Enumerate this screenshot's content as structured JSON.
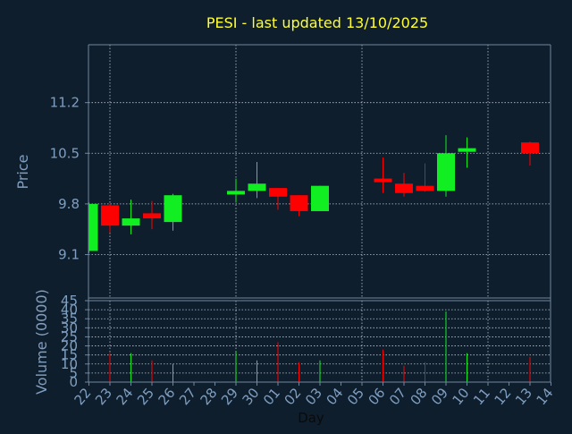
{
  "colors": {
    "background": "#0f1e2d",
    "axis": "#6f86a0",
    "grid": "#b8c4d0",
    "title": "#ffff33",
    "label": "#7f9fc0",
    "up": "#11ee22",
    "down": "#ff0000",
    "xlabel": "#0a0a0a"
  },
  "chart_data": {
    "type": "candlestick",
    "title": "PESI - last updated 13/10/2025",
    "xlabel": "Day",
    "price_panel": {
      "ylabel": "Price",
      "ylim": [
        8.5,
        12.0
      ],
      "yticks": [
        9.1,
        9.8,
        10.5,
        11.2
      ],
      "ytick_labels": [
        "9.1",
        "9.8",
        "10.5",
        "11.2"
      ],
      "grid": true
    },
    "volume_panel": {
      "ylabel": "Volume (0000)",
      "ylim": [
        0,
        45
      ],
      "yticks": [
        0,
        5,
        10,
        15,
        20,
        25,
        30,
        35,
        40,
        45
      ],
      "ytick_labels": [
        "0",
        "5",
        "10",
        "15",
        "20",
        "25",
        "30",
        "35",
        "40",
        "45"
      ],
      "grid": true
    },
    "x_labels": [
      "22",
      "23",
      "24",
      "25",
      "26",
      "27",
      "28",
      "29",
      "30",
      "01",
      "02",
      "03",
      "04",
      "05",
      "06",
      "07",
      "08",
      "09",
      "10",
      "11",
      "12",
      "13",
      "14"
    ],
    "candles": [
      {
        "x": "22",
        "open": 9.15,
        "high": 9.82,
        "low": 9.12,
        "close": 9.8,
        "volume": 0
      },
      {
        "x": "23",
        "open": 9.78,
        "high": 9.8,
        "low": 9.4,
        "close": 9.5,
        "volume": 16
      },
      {
        "x": "24",
        "open": 9.5,
        "high": 9.86,
        "low": 9.38,
        "close": 9.6,
        "volume": 16
      },
      {
        "x": "25",
        "open": 9.67,
        "high": 9.84,
        "low": 9.45,
        "close": 9.6,
        "volume": 12
      },
      {
        "x": "26",
        "open": 9.55,
        "high": 9.94,
        "low": 9.43,
        "close": 9.92,
        "volume": 10
      },
      {
        "x": "29",
        "open": 9.93,
        "high": 10.15,
        "low": 9.82,
        "close": 9.98,
        "volume": 17
      },
      {
        "x": "30",
        "open": 9.98,
        "high": 10.38,
        "low": 9.88,
        "close": 10.08,
        "volume": 12
      },
      {
        "x": "01",
        "open": 10.02,
        "high": 10.02,
        "low": 9.72,
        "close": 9.9,
        "volume": 22
      },
      {
        "x": "02",
        "open": 9.92,
        "high": 9.92,
        "low": 9.63,
        "close": 9.7,
        "volume": 11
      },
      {
        "x": "03",
        "open": 9.7,
        "high": 10.05,
        "low": 9.7,
        "close": 10.05,
        "volume": 12
      },
      {
        "x": "06",
        "open": 10.15,
        "high": 10.44,
        "low": 9.95,
        "close": 10.1,
        "volume": 18
      },
      {
        "x": "07",
        "open": 10.08,
        "high": 10.23,
        "low": 9.9,
        "close": 9.95,
        "volume": 9
      },
      {
        "x": "08",
        "open": 10.05,
        "high": 10.36,
        "low": 9.97,
        "close": 9.98,
        "volume": 11
      },
      {
        "x": "09",
        "open": 9.98,
        "high": 10.75,
        "low": 9.9,
        "close": 10.5,
        "volume": 39
      },
      {
        "x": "10",
        "open": 10.52,
        "high": 10.72,
        "low": 10.3,
        "close": 10.57,
        "volume": 16
      },
      {
        "x": "13",
        "open": 10.65,
        "high": 10.66,
        "low": 10.33,
        "close": 10.5,
        "volume": 14
      }
    ]
  }
}
